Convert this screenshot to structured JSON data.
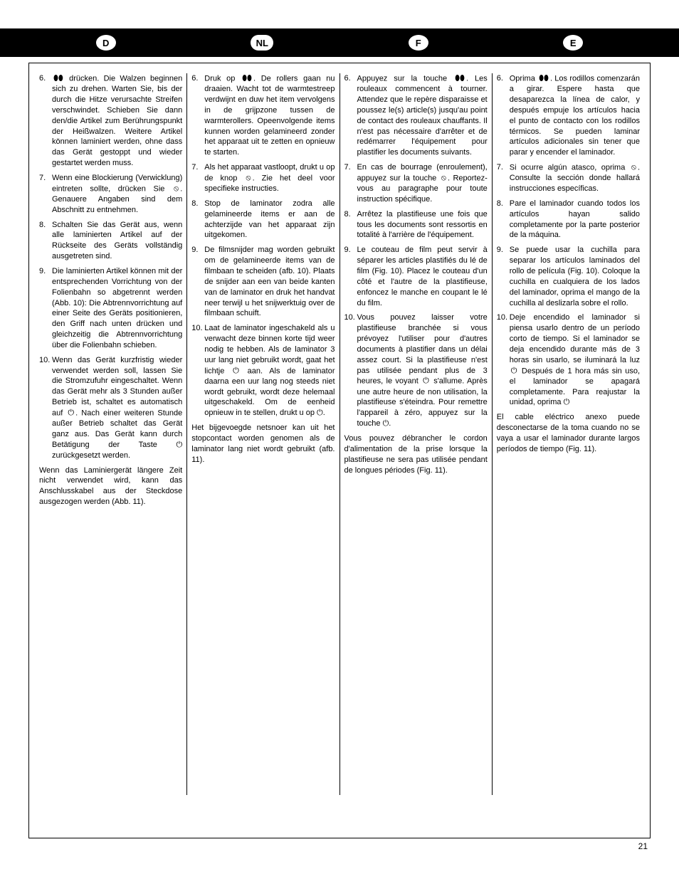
{
  "page_number": "21",
  "header": {
    "badges": [
      "D",
      "NL",
      "F",
      "E"
    ]
  },
  "icons": {
    "laminate": "⬮⬮",
    "jam": "⦸",
    "standby": "⏻"
  },
  "columns": [
    {
      "lang": "D",
      "items": [
        {
          "n": "6.",
          "pre": "",
          "icon": "laminate",
          "post": " drücken. Die Walzen beginnen sich zu drehen. Warten Sie, bis der durch die Hitze verursachte Streifen verschwindet. Schieben Sie dann den/die Artikel zum Berührungspunkt der Heißwalzen. Weitere Artikel können laminiert werden, ohne dass das Gerät gestoppt und wieder gestartet werden muss."
        },
        {
          "n": "7.",
          "pre": "Wenn eine Blockierung (Verwicklung) eintreten sollte, drücken Sie ",
          "icon": "jam",
          "post": ". Genauere Angaben sind dem Abschnitt zu entnehmen."
        },
        {
          "n": "8.",
          "pre": "Schalten Sie das Gerät aus, wenn alle laminierten Artikel auf der Rückseite des Geräts vollständig ausgetreten sind.",
          "icon": null,
          "post": ""
        },
        {
          "n": "9.",
          "pre": "Die laminierten Artikel können mit der entsprechenden Vorrichtung von der Folienbahn so abgetrennt werden (Abb. 10): Die Abtrennvorrichtung auf einer Seite des Geräts positionieren, den Griff nach unten drücken und gleichzeitig die Abtrennvorrichtung über die Folienbahn schieben.",
          "icon": null,
          "post": ""
        },
        {
          "n": "10.",
          "pre": "Wenn das Gerät kurzfristig wieder verwendet werden soll, lassen Sie die Stromzufuhr eingeschaltet. Wenn das Gerät mehr als 3 Stunden außer Betrieb ist, schaltet es automatisch auf ",
          "icon": "standby",
          "post": ". Nach einer weiteren Stunde außer Betrieb schaltet das Gerät ganz aus. Das Gerät kann durch Betätigung der Taste ⏻ zurückgesetzt werden."
        }
      ],
      "footer": "Wenn das Laminiergerät längere Zeit nicht verwendet wird, kann das Anschlusskabel aus der Steckdose ausgezogen werden (Abb. 11)."
    },
    {
      "lang": "NL",
      "items": [
        {
          "n": "6.",
          "pre": "Druk op ",
          "icon": "laminate",
          "post": ". De rollers gaan nu draaien. Wacht tot de warmtestreep verdwijnt en duw het item vervolgens in de grijpzone tussen de warmterollers. Opeenvolgende items kunnen worden gelamineerd zonder het apparaat uit te zetten en opnieuw te starten."
        },
        {
          "n": "7.",
          "pre": "Als het apparaat vastloopt, drukt u op de knop ",
          "icon": "jam",
          "post": ". Zie het deel voor specifieke instructies."
        },
        {
          "n": "8.",
          "pre": "Stop de laminator zodra alle gelamineerde items er aan de achterzijde van het apparaat zijn uitgekomen.",
          "icon": null,
          "post": ""
        },
        {
          "n": "9.",
          "pre": "De filmsnijder mag worden gebruikt om de gelamineerde items van de filmbaan te scheiden (afb. 10). Plaats de snijder aan een van beide kanten van de laminator en druk het handvat neer terwijl u het snijwerktuig over de filmbaan schuift.",
          "icon": null,
          "post": ""
        },
        {
          "n": "10.",
          "pre": "Laat de laminator ingeschakeld als u verwacht deze binnen korte tijd weer nodig te hebben. Als de laminator 3 uur lang niet gebruikt wordt, gaat het lichtje ",
          "icon": "standby",
          "post": " aan. Als de laminator daarna een uur lang nog steeds niet wordt gebruikt, wordt deze helemaal uitgeschakeld. Om de eenheid opnieuw in te stellen, drukt u op ⏻."
        }
      ],
      "footer": "Het bijgevoegde netsnoer kan uit het stopcontact worden genomen als de laminator lang niet wordt gebruikt (afb. 11)."
    },
    {
      "lang": "F",
      "items": [
        {
          "n": "6.",
          "pre": "Appuyez sur la touche ",
          "icon": "laminate",
          "post": ". Les rouleaux commencent à tourner. Attendez que le repère disparaisse et poussez le(s) article(s) jusqu'au point de contact des rouleaux chauffants. Il n'est pas nécessaire d'arrêter et de redémarrer l'équipement pour plastifier les documents suivants."
        },
        {
          "n": "7.",
          "pre": "En cas de bourrage (enroulement), appuyez sur la touche ",
          "icon": "jam",
          "post": ". Reportez-vous au paragraphe pour toute instruction spécifique."
        },
        {
          "n": "8.",
          "pre": "Arrêtez la plastifieuse une fois que tous les documents sont ressortis en totalité à l'arrière de l'équipement.",
          "icon": null,
          "post": ""
        },
        {
          "n": "9.",
          "pre": "Le couteau de film peut servir à séparer les articles plastifiés du lé de film (Fig. 10). Placez le couteau d'un côté et l'autre de la plastifieuse, enfoncez le manche en coupant le lé du film.",
          "icon": null,
          "post": ""
        },
        {
          "n": "10.",
          "pre": "Vous pouvez laisser votre plastifieuse branchée si vous prévoyez l'utiliser pour d'autres documents à plastifier dans un délai assez court. Si la plastifieuse n'est pas utilisée pendant plus de 3 heures, le voyant ",
          "icon": "standby",
          "post": " s'allume. Après une autre heure de non utilisation, la plastifieuse s'éteindra. Pour remettre l'appareil à zéro, appuyez sur la touche ⏻."
        }
      ],
      "footer": "Vous pouvez débrancher le cordon d'alimentation de la prise lorsque la plastifieuse ne sera pas utilisée pendant de longues périodes (Fig. 11)."
    },
    {
      "lang": "E",
      "items": [
        {
          "n": "6.",
          "pre": "Oprima ",
          "icon": "laminate",
          "post": ". Los rodillos comenzarán a girar. Espere hasta que desaparezca la línea de calor, y después empuje los artículos hacia el punto de contacto con los rodillos térmicos. Se pueden laminar artículos adicionales sin tener que parar y encender el laminador."
        },
        {
          "n": "7.",
          "pre": "Si ocurre algún atasco, oprima ",
          "icon": "jam",
          "post": ". Consulte la sección donde hallará instrucciones específicas."
        },
        {
          "n": "8.",
          "pre": "Pare el laminador cuando todos los artículos hayan salido completamente por la parte posterior de la máquina.",
          "icon": null,
          "post": ""
        },
        {
          "n": "9.",
          "pre": "Se puede usar la cuchilla para separar los artículos laminados del rollo de película (Fig. 10). Coloque la cuchilla en cualquiera de los lados del laminador, oprima el mango de la cuchilla al deslizarla sobre el rollo.",
          "icon": null,
          "post": ""
        },
        {
          "n": "10.",
          "pre": "Deje encendido el laminador si piensa usarlo dentro de un período corto de tiempo. Si el laminador se deja encendido durante más de 3 horas sin usarlo, se iluminará la luz ",
          "icon": "standby",
          "post": " Después de 1 hora más sin uso, el laminador se apagará completamente. Para reajustar la unidad, oprima ⏻"
        }
      ],
      "footer": "El cable eléctrico anexo puede desconectarse de la toma cuando no se vaya a usar el laminador durante largos períodos de tiempo (Fig. 11)."
    }
  ]
}
